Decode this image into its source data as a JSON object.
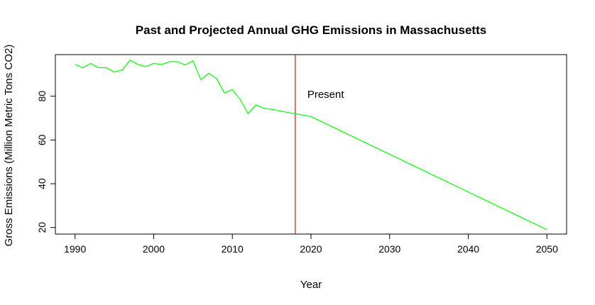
{
  "chart_data": {
    "type": "line",
    "title": "Past and Projected Annual GHG Emissions in Massachusetts",
    "xlabel": "Year",
    "ylabel": "Gross Emissions (Million Metric Tons CO2)",
    "xlim": [
      1987.5,
      2052.5
    ],
    "ylim": [
      17,
      99
    ],
    "xticks": [
      1990,
      2000,
      2010,
      2020,
      2030,
      2040,
      2050
    ],
    "yticks": [
      20,
      40,
      60,
      80
    ],
    "grid": false,
    "series": [
      {
        "color": "#00ff00",
        "x": [
          1990,
          1991,
          1992,
          1993,
          1994,
          1995,
          1996,
          1997,
          1998,
          1999,
          2000,
          2001,
          2002,
          2003,
          2004,
          2005,
          2006,
          2007,
          2008,
          2009,
          2010,
          2011,
          2012,
          2013,
          2014,
          2015,
          2016,
          2017,
          2018,
          2020,
          2050
        ],
        "y": [
          94.5,
          93.0,
          95.0,
          93.0,
          93.0,
          91.0,
          92.0,
          96.5,
          94.5,
          93.5,
          95.0,
          94.5,
          95.7,
          95.8,
          94.3,
          96.2,
          87.5,
          90.5,
          88.0,
          81.5,
          83.0,
          78.5,
          72.0,
          76.0,
          74.5,
          74.0,
          73.3,
          72.6,
          72.0,
          70.7,
          19.0
        ]
      }
    ],
    "vline": {
      "x": 2018,
      "color": "#ff0000",
      "label": "Present"
    }
  }
}
